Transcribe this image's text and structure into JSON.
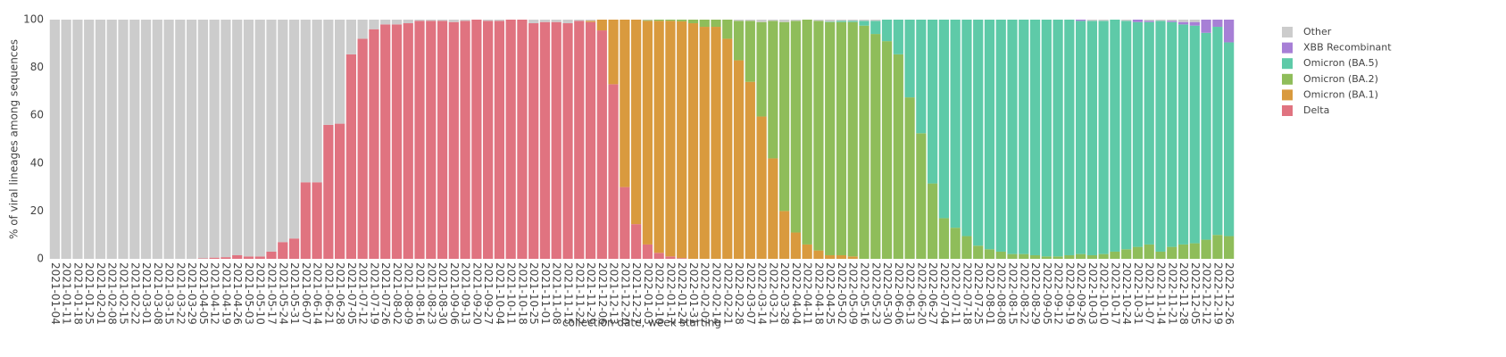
{
  "chart_data": {
    "type": "stacked_bar",
    "x_label": "collection date, week starting",
    "y_label": "% of viral lineages among sequences",
    "categories": [
      "2021-01-04",
      "2021-01-11",
      "2021-01-18",
      "2021-01-25",
      "2021-02-01",
      "2021-02-08",
      "2021-02-15",
      "2021-02-22",
      "2021-03-01",
      "2021-03-08",
      "2021-03-15",
      "2021-03-22",
      "2021-03-29",
      "2021-04-05",
      "2021-04-12",
      "2021-04-19",
      "2021-04-26",
      "2021-05-03",
      "2021-05-10",
      "2021-05-17",
      "2021-05-24",
      "2021-05-31",
      "2021-06-07",
      "2021-06-14",
      "2021-06-21",
      "2021-06-28",
      "2021-07-05",
      "2021-07-12",
      "2021-07-19",
      "2021-07-26",
      "2021-08-02",
      "2021-08-09",
      "2021-08-16",
      "2021-08-23",
      "2021-08-30",
      "2021-09-06",
      "2021-09-13",
      "2021-09-20",
      "2021-09-27",
      "2021-10-04",
      "2021-10-11",
      "2021-10-18",
      "2021-10-25",
      "2021-11-01",
      "2021-11-08",
      "2021-11-15",
      "2021-11-22",
      "2021-11-29",
      "2021-12-06",
      "2021-12-13",
      "2021-12-20",
      "2021-12-27",
      "2022-01-03",
      "2022-01-10",
      "2022-01-17",
      "2022-01-24",
      "2022-01-31",
      "2022-02-07",
      "2022-02-14",
      "2022-02-21",
      "2022-02-28",
      "2022-03-07",
      "2022-03-14",
      "2022-03-21",
      "2022-03-28",
      "2022-04-04",
      "2022-04-11",
      "2022-04-18",
      "2022-04-25",
      "2022-05-02",
      "2022-05-09",
      "2022-05-16",
      "2022-05-23",
      "2022-05-30",
      "2022-06-06",
      "2022-06-13",
      "2022-06-20",
      "2022-06-27",
      "2022-07-04",
      "2022-07-11",
      "2022-07-18",
      "2022-07-25",
      "2022-08-01",
      "2022-08-08",
      "2022-08-15",
      "2022-08-22",
      "2022-08-29",
      "2022-09-05",
      "2022-09-12",
      "2022-09-19",
      "2022-09-26",
      "2022-10-03",
      "2022-10-10",
      "2022-10-17",
      "2022-10-24",
      "2022-10-31",
      "2022-11-07",
      "2022-11-14",
      "2022-11-21",
      "2022-11-28",
      "2022-12-05",
      "2022-12-12",
      "2022-12-19",
      "2022-12-26"
    ],
    "series": [
      {
        "name": "Delta",
        "color": "#e07380",
        "values": [
          0,
          0,
          0,
          0,
          0,
          0,
          0,
          0,
          0,
          0,
          0,
          0,
          0,
          0.2,
          0.5,
          0.7,
          1.5,
          1,
          1,
          3,
          7,
          8.5,
          32,
          32,
          56,
          56.5,
          85.5,
          92,
          96,
          98,
          98,
          98.5,
          99.5,
          99.5,
          99.5,
          99,
          99.5,
          100,
          99.5,
          99.5,
          100,
          100,
          98.5,
          99,
          99,
          98.5,
          99.5,
          99,
          95.5,
          73,
          30,
          14.5,
          6,
          2.5,
          1,
          0.3,
          0,
          0,
          0,
          0,
          0,
          0,
          0,
          0,
          0,
          0,
          0,
          0,
          0,
          0,
          0,
          0,
          0,
          0,
          0,
          0,
          0,
          0,
          0,
          0,
          0,
          0,
          0,
          0,
          0,
          0,
          0,
          0,
          0,
          0,
          0,
          0,
          0,
          0,
          0,
          0,
          0,
          0,
          0,
          0,
          0,
          0,
          0,
          0
        ]
      },
      {
        "name": "Omicron (BA.1)",
        "color": "#d99a3e",
        "values": [
          0,
          0,
          0,
          0,
          0,
          0,
          0,
          0,
          0,
          0,
          0,
          0,
          0,
          0,
          0,
          0,
          0,
          0,
          0,
          0,
          0,
          0,
          0,
          0,
          0,
          0,
          0,
          0,
          0,
          0,
          0,
          0,
          0,
          0,
          0,
          0,
          0,
          0,
          0,
          0,
          0,
          0,
          0,
          0,
          0,
          0,
          0,
          0.5,
          4.5,
          27,
          70,
          85.5,
          93.5,
          97,
          98.5,
          99,
          98.5,
          97,
          97,
          92,
          83,
          74,
          59.5,
          42,
          20,
          11,
          6,
          3.5,
          1.5,
          1.5,
          1,
          0,
          0,
          0,
          0,
          0,
          0,
          0,
          0,
          0,
          0,
          0,
          0,
          0,
          0,
          0,
          0,
          0,
          0,
          0,
          0,
          0,
          0,
          0,
          0,
          0,
          0,
          0,
          0,
          0,
          0,
          0,
          0,
          0
        ]
      },
      {
        "name": "Omicron (BA.2)",
        "color": "#8fbd5a",
        "values": [
          0,
          0,
          0,
          0,
          0,
          0,
          0,
          0,
          0,
          0,
          0,
          0,
          0,
          0,
          0,
          0,
          0,
          0,
          0,
          0,
          0,
          0,
          0,
          0,
          0,
          0,
          0,
          0,
          0,
          0,
          0,
          0,
          0,
          0,
          0,
          0,
          0,
          0,
          0,
          0,
          0,
          0,
          0,
          0,
          0,
          0,
          0,
          0,
          0,
          0,
          0,
          0,
          0.3,
          0.5,
          0.5,
          0.7,
          1.5,
          3,
          3,
          8,
          16.5,
          25.5,
          39.5,
          57.5,
          79,
          88.5,
          94,
          96,
          97.5,
          97.5,
          98,
          97.5,
          94,
          91,
          85.5,
          67.5,
          52.5,
          31.5,
          17,
          13,
          9.5,
          5.5,
          4,
          3,
          2,
          2,
          1.5,
          1,
          1,
          1.5,
          2,
          1.5,
          2,
          3,
          4,
          5,
          6,
          3,
          5,
          6,
          6.5,
          8,
          10,
          9.5
        ]
      },
      {
        "name": "Omicron (BA.5)",
        "color": "#5ecaa8",
        "values": [
          0,
          0,
          0,
          0,
          0,
          0,
          0,
          0,
          0,
          0,
          0,
          0,
          0,
          0,
          0,
          0,
          0,
          0,
          0,
          0,
          0,
          0,
          0,
          0,
          0,
          0,
          0,
          0,
          0,
          0,
          0,
          0,
          0,
          0,
          0,
          0,
          0,
          0,
          0,
          0,
          0,
          0,
          0,
          0,
          0,
          0,
          0,
          0,
          0,
          0,
          0,
          0,
          0,
          0,
          0,
          0,
          0,
          0,
          0,
          0,
          0,
          0,
          0,
          0,
          0,
          0,
          0,
          0,
          0.2,
          0.5,
          0.5,
          2,
          5.5,
          9,
          14.5,
          32.5,
          47.5,
          68.5,
          83,
          87,
          90.5,
          94.5,
          96,
          97,
          98,
          98,
          98.5,
          99,
          99,
          98.5,
          97.5,
          98,
          97.5,
          97,
          95.5,
          94,
          93,
          96.5,
          94,
          92,
          91,
          86.5,
          87,
          81
        ]
      },
      {
        "name": "XBB Recombinant",
        "color": "#a77fd6",
        "values": [
          0,
          0,
          0,
          0,
          0,
          0,
          0,
          0,
          0,
          0,
          0,
          0,
          0,
          0,
          0,
          0,
          0,
          0,
          0,
          0,
          0,
          0,
          0,
          0,
          0,
          0,
          0,
          0,
          0,
          0,
          0,
          0,
          0,
          0,
          0,
          0,
          0,
          0,
          0,
          0,
          0,
          0,
          0,
          0,
          0,
          0,
          0,
          0,
          0,
          0,
          0,
          0,
          0,
          0,
          0,
          0,
          0,
          0,
          0,
          0,
          0,
          0,
          0,
          0,
          0,
          0,
          0,
          0,
          0,
          0,
          0,
          0,
          0,
          0,
          0,
          0,
          0,
          0,
          0,
          0,
          0,
          0,
          0,
          0,
          0,
          0,
          0,
          0,
          0,
          0,
          0.5,
          0,
          0,
          0,
          0,
          1,
          0.5,
          0,
          0.5,
          1,
          1.5,
          5.5,
          3,
          9.5
        ]
      },
      {
        "name": "Other",
        "color": "#cccccc",
        "values": [
          100,
          100,
          100,
          100,
          100,
          100,
          100,
          100,
          100,
          100,
          100,
          100,
          100,
          99.8,
          99.5,
          99.3,
          98.5,
          99,
          99,
          97,
          93,
          91.5,
          68,
          68,
          44,
          43.5,
          14.5,
          8,
          4,
          2,
          2,
          1.5,
          0.5,
          0.5,
          0.5,
          1,
          0.5,
          0,
          0.5,
          0.5,
          0,
          0,
          1.5,
          1,
          1,
          1.5,
          0.5,
          0.5,
          0,
          0,
          0,
          0,
          0.2,
          0,
          0,
          0,
          0,
          0,
          0,
          0,
          0.5,
          0.5,
          1,
          0.5,
          1,
          0.5,
          0,
          0.5,
          0.8,
          0.5,
          0.5,
          0.5,
          0.5,
          0,
          0,
          0,
          0,
          0,
          0,
          0,
          0,
          0,
          0,
          0,
          0,
          0,
          0,
          0,
          0,
          0,
          0,
          0.5,
          0.5,
          0,
          0.5,
          0,
          0.5,
          0.5,
          0.5,
          1,
          1,
          0,
          0,
          0
        ]
      }
    ],
    "ylim": [
      0,
      100
    ],
    "yticks": [
      0,
      20,
      40,
      60,
      80,
      100
    ],
    "grid": false,
    "legend": "right"
  }
}
